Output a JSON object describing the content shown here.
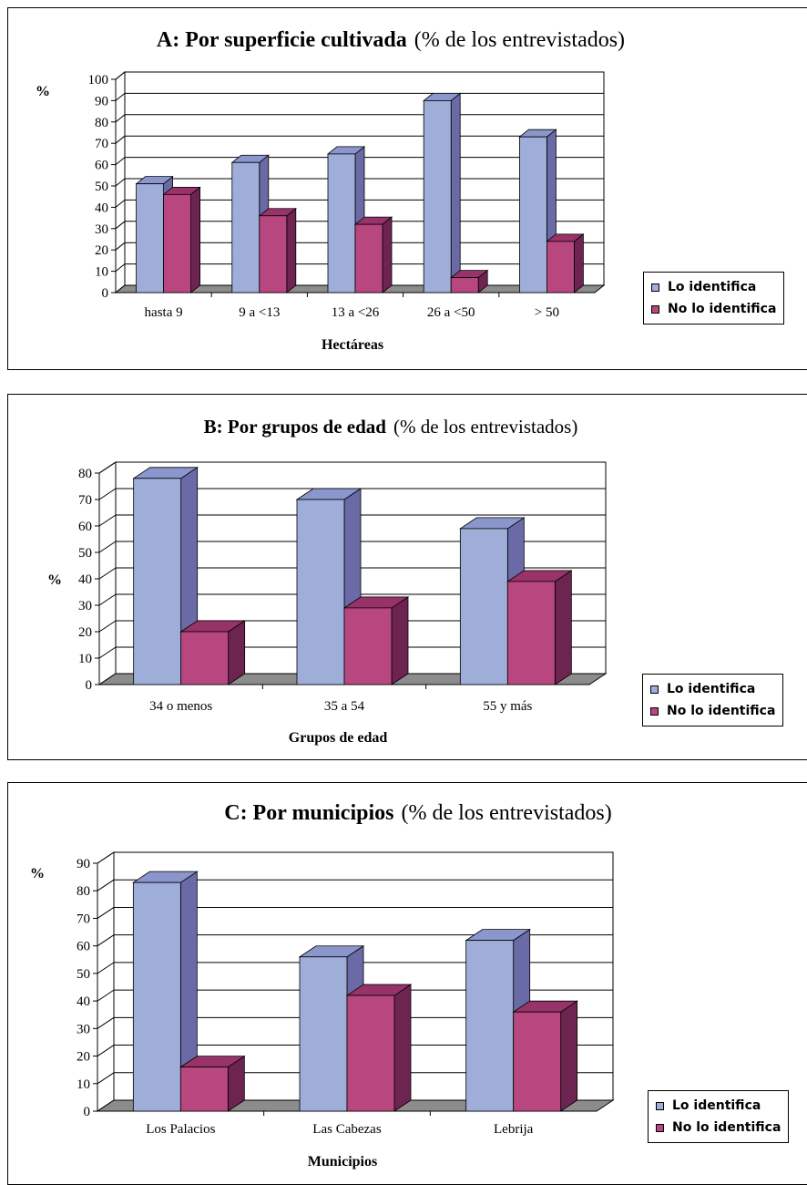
{
  "colors": {
    "blue_front": "#9eaed9",
    "blue_side": "#6a6aa6",
    "blue_top": "#8a96cc",
    "red_front": "#b84780",
    "red_side": "#6e2450",
    "red_top": "#98336a",
    "floor": "#8c8c8c",
    "wall": "#ffffff"
  },
  "chart_data": [
    {
      "type": "bar",
      "title_bold": "A: Por superficie cultivada",
      "title_rest": "(% de los entrevistados)",
      "ylabel": "%",
      "xlabel": "Hectáreas",
      "categories": [
        "hasta 9",
        "9 a <13",
        "13 a <26",
        "26 a <50",
        "> 50"
      ],
      "ylim": [
        0,
        100
      ],
      "yticks": [
        "0",
        "10",
        "20",
        "30",
        "40",
        "50",
        "60",
        "70",
        "80",
        "90",
        "100"
      ],
      "series": [
        {
          "name": "Lo identifica",
          "values": [
            51,
            61,
            65,
            90,
            73
          ]
        },
        {
          "name": "No lo identifica",
          "values": [
            46,
            36,
            32,
            7,
            24
          ]
        }
      ],
      "grid": true,
      "legend": "bottom-right"
    },
    {
      "type": "bar",
      "title_bold": "B: Por grupos de edad",
      "title_rest": "(% de los entrevistados)",
      "ylabel": "%",
      "xlabel": "Grupos de edad",
      "categories": [
        "34 o menos",
        "35 a 54",
        "55 y más"
      ],
      "ylim": [
        0,
        80
      ],
      "yticks": [
        "0",
        "10",
        "20",
        "30",
        "40",
        "50",
        "60",
        "70",
        "80"
      ],
      "series": [
        {
          "name": "Lo identifica",
          "values": [
            78,
            70,
            59
          ]
        },
        {
          "name": "No lo identifica",
          "values": [
            20,
            29,
            39
          ]
        }
      ],
      "grid": true,
      "legend": "bottom-right"
    },
    {
      "type": "bar",
      "title_bold": "C: Por municipios",
      "title_rest": "(% de los entrevistados)",
      "ylabel": "%",
      "xlabel": "Municipios",
      "categories": [
        "Los Palacios",
        "Las Cabezas",
        "Lebrija"
      ],
      "ylim": [
        0,
        90
      ],
      "yticks": [
        "0",
        "10",
        "20",
        "30",
        "40",
        "50",
        "60",
        "70",
        "80",
        "90"
      ],
      "series": [
        {
          "name": "Lo identifica",
          "values": [
            83,
            56,
            62
          ]
        },
        {
          "name": "No lo identifica",
          "values": [
            16,
            42,
            36
          ]
        }
      ],
      "grid": true,
      "legend": "bottom-right"
    }
  ]
}
